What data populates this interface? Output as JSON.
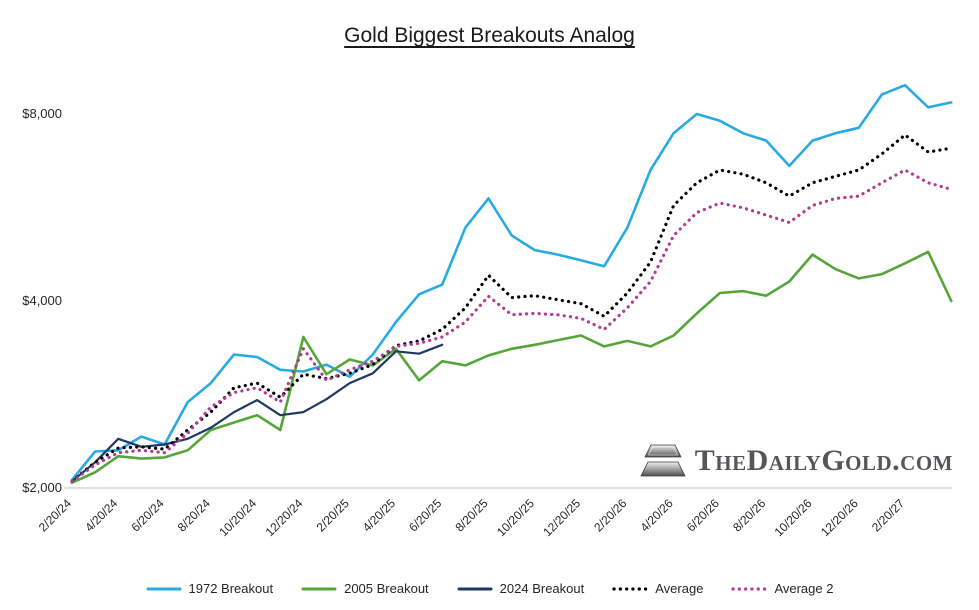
{
  "title": "Gold Biggest Breakouts Analog",
  "watermark": {
    "text": "TheDailyGold.com",
    "icon": "gold-ingots-icon"
  },
  "chart_data": {
    "type": "line",
    "title": "Gold Biggest Breakouts Analog",
    "xlabel": "",
    "ylabel": "",
    "y_scale": "log",
    "ylim": [
      2000,
      9500
    ],
    "grid": false,
    "legend_position": "bottom",
    "x_tick_spacing_months": 2,
    "x_tick_labels": [
      "2/20/24",
      "4/20/24",
      "6/20/24",
      "8/20/24",
      "10/20/24",
      "12/20/24",
      "2/20/25",
      "4/20/25",
      "6/20/25",
      "8/20/25",
      "10/20/25",
      "12/20/25",
      "2/20/26",
      "4/20/26",
      "6/20/26",
      "8/20/26",
      "10/20/26",
      "12/20/26",
      "2/20/27"
    ],
    "y_ticks": [
      {
        "label": "$8,000",
        "value": 8000
      },
      {
        "label": "$4,000",
        "value": 4000
      },
      {
        "label": "$2,000",
        "value": 2000
      }
    ],
    "x_unit": "months since 2/20/24, one value per month",
    "series": [
      {
        "name": "1972 Breakout",
        "color": "#29abe2",
        "style": "solid",
        "width": 2.6,
        "start_month": 0,
        "values": [
          2060,
          2290,
          2300,
          2420,
          2350,
          2750,
          2950,
          3280,
          3250,
          3100,
          3080,
          3160,
          3020,
          3280,
          3700,
          4100,
          4250,
          5250,
          5850,
          5100,
          4830,
          4750,
          4650,
          4550,
          5250,
          6500,
          7450,
          8000,
          7800,
          7450,
          7250,
          6600,
          7250,
          7450,
          7600,
          8600,
          8900,
          8200,
          8350
        ]
      },
      {
        "name": "2005 Breakout",
        "color": "#56a53a",
        "style": "solid",
        "width": 2.6,
        "start_month": 0,
        "values": [
          2040,
          2120,
          2250,
          2230,
          2240,
          2300,
          2480,
          2550,
          2620,
          2480,
          3500,
          3050,
          3220,
          3150,
          3350,
          2980,
          3200,
          3150,
          3270,
          3350,
          3400,
          3460,
          3520,
          3380,
          3450,
          3380,
          3520,
          3820,
          4120,
          4150,
          4080,
          4300,
          4750,
          4500,
          4350,
          4420,
          4600,
          4800,
          4000
        ]
      },
      {
        "name": "2024 Breakout",
        "color": "#1f3864",
        "style": "solid",
        "width": 2.2,
        "start_month": 0,
        "values": [
          2050,
          2200,
          2400,
          2330,
          2350,
          2400,
          2500,
          2650,
          2770,
          2620,
          2650,
          2780,
          2950,
          3060,
          3320,
          3290,
          3400
        ]
      },
      {
        "name": "Average",
        "color": "#000000",
        "style": "dotted",
        "width": 3.2,
        "start_month": 0,
        "values": [
          2050,
          2200,
          2320,
          2330,
          2310,
          2480,
          2650,
          2900,
          2950,
          2800,
          3050,
          3000,
          3060,
          3160,
          3390,
          3450,
          3600,
          3900,
          4400,
          4050,
          4080,
          4020,
          3960,
          3780,
          4120,
          4620,
          5700,
          6200,
          6500,
          6400,
          6200,
          5900,
          6200,
          6350,
          6500,
          6900,
          7400,
          6950,
          7050
        ]
      },
      {
        "name": "Average 2",
        "color": "#b23a93",
        "style": "dotted",
        "width": 3.2,
        "start_month": 0,
        "values": [
          2050,
          2180,
          2280,
          2300,
          2280,
          2450,
          2700,
          2850,
          2900,
          2750,
          3350,
          2980,
          3100,
          3200,
          3380,
          3420,
          3500,
          3700,
          4070,
          3800,
          3820,
          3800,
          3750,
          3600,
          3900,
          4300,
          5100,
          5550,
          5750,
          5650,
          5500,
          5350,
          5700,
          5850,
          5900,
          6200,
          6500,
          6200,
          6050
        ]
      }
    ]
  }
}
